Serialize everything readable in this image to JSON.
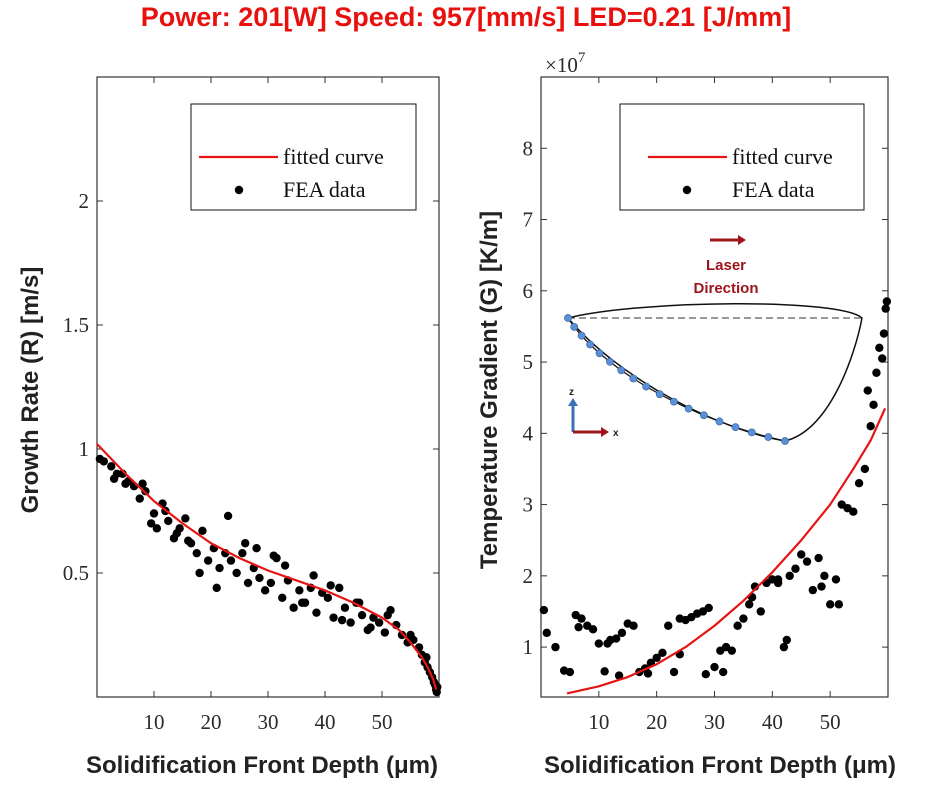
{
  "header": {
    "title": "Power: 201[W]   Speed: 957[mm/s]   LED=0.21 [J/mm]"
  },
  "colors": {
    "title": "#e8110e",
    "fit": "#e61414",
    "points": "#000000",
    "inset_dots": "#5b8fd6",
    "arrow": "#a0151c",
    "z_axis": "#3b6fb6"
  },
  "chart_data": [
    {
      "type": "scatter",
      "title": "",
      "xlabel": "Solidification Front Depth (μm)",
      "ylabel": "Growth Rate (R) [m/s]",
      "xlim": [
        0,
        60
      ],
      "ylim": [
        0,
        2.5
      ],
      "xticks": [
        10,
        20,
        30,
        40,
        50
      ],
      "xtick_labels": [
        "10",
        "20",
        "30",
        "40",
        "50"
      ],
      "yticks": [
        0.5,
        1,
        1.5,
        2
      ],
      "ytick_labels": [
        "0.5",
        "1",
        "1.5",
        "2"
      ],
      "legend": {
        "placement": "top-right",
        "entries": [
          "fitted curve",
          "FEA data"
        ]
      },
      "series": [
        {
          "name": "fitted curve",
          "kind": "line",
          "x": [
            0,
            5,
            10,
            15,
            20,
            25,
            30,
            35,
            40,
            45,
            50,
            53,
            55,
            57,
            58,
            59,
            59.5
          ],
          "y": [
            1.02,
            0.9,
            0.79,
            0.7,
            0.62,
            0.56,
            0.51,
            0.47,
            0.43,
            0.38,
            0.32,
            0.27,
            0.22,
            0.16,
            0.12,
            0.07,
            0.03
          ]
        },
        {
          "name": "FEA data",
          "kind": "scatter",
          "x": [
            0.5,
            1.2,
            2.5,
            3.5,
            4.5,
            5.5,
            6.5,
            7.5,
            8.5,
            9.5,
            10.5,
            11.5,
            12.5,
            13.5,
            14.5,
            15.5,
            16.5,
            17.5,
            18.5,
            19.5,
            20.5,
            21.5,
            22.5,
            23.5,
            24.5,
            25.5,
            26.5,
            27.5,
            28.5,
            29.5,
            30.5,
            31.5,
            32.5,
            33.5,
            34.5,
            35.5,
            36.5,
            37.5,
            38.5,
            39.5,
            40.5,
            41.5,
            42.5,
            43.5,
            44.5,
            45.5,
            46.5,
            47.5,
            48.5,
            49.5,
            50.5,
            51.5,
            52.5,
            53.5,
            54.5,
            55.5,
            56.5,
            57.0,
            57.5,
            58.0,
            58.4,
            58.8,
            59.1,
            59.3,
            59.5,
            59.6,
            59.7,
            3.0,
            5.0,
            8.0,
            10.0,
            12.0,
            14.0,
            16.0,
            18.0,
            21.0,
            23.0,
            26.0,
            28.0,
            31.0,
            33.0,
            36.0,
            38.0,
            41.0,
            43.0,
            46.0,
            48.0,
            51.0,
            55.0,
            57.8
          ],
          "y": [
            0.96,
            0.95,
            0.93,
            0.9,
            0.9,
            0.87,
            0.85,
            0.8,
            0.83,
            0.7,
            0.68,
            0.78,
            0.71,
            0.64,
            0.68,
            0.72,
            0.62,
            0.58,
            0.67,
            0.55,
            0.6,
            0.52,
            0.58,
            0.55,
            0.5,
            0.58,
            0.46,
            0.52,
            0.48,
            0.43,
            0.46,
            0.56,
            0.4,
            0.47,
            0.36,
            0.43,
            0.38,
            0.44,
            0.34,
            0.42,
            0.4,
            0.32,
            0.44,
            0.36,
            0.3,
            0.38,
            0.33,
            0.27,
            0.32,
            0.3,
            0.26,
            0.35,
            0.29,
            0.25,
            0.22,
            0.23,
            0.2,
            0.17,
            0.14,
            0.12,
            0.1,
            0.08,
            0.06,
            0.05,
            0.03,
            0.02,
            0.04,
            0.88,
            0.86,
            0.86,
            0.74,
            0.75,
            0.66,
            0.63,
            0.5,
            0.44,
            0.73,
            0.62,
            0.6,
            0.57,
            0.53,
            0.38,
            0.49,
            0.45,
            0.31,
            0.38,
            0.28,
            0.33,
            0.25,
            0.16
          ]
        }
      ]
    },
    {
      "type": "scatter",
      "title": "",
      "xlabel": "Solidification Front Depth (μm)",
      "ylabel": "Temperature Gradient (G) [K/m]",
      "exponent_label": "×10",
      "exponent_power": "7",
      "xlim": [
        0,
        60
      ],
      "ylim": [
        0.3,
        9.0
      ],
      "xticks": [
        10,
        20,
        30,
        40,
        50
      ],
      "xtick_labels": [
        "10",
        "20",
        "30",
        "40",
        "50"
      ],
      "yticks": [
        1,
        2,
        3,
        4,
        5,
        6,
        7,
        8
      ],
      "ytick_labels": [
        "1",
        "2",
        "3",
        "4",
        "5",
        "6",
        "7",
        "8"
      ],
      "legend": {
        "placement": "top-right",
        "entries": [
          "fitted curve",
          "FEA data"
        ]
      },
      "series": [
        {
          "name": "fitted curve",
          "kind": "line",
          "x": [
            4.5,
            10,
            15,
            20,
            25,
            30,
            35,
            40,
            45,
            50,
            54,
            57,
            59.5
          ],
          "y": [
            0.35,
            0.45,
            0.58,
            0.76,
            1.0,
            1.3,
            1.65,
            2.05,
            2.5,
            3.0,
            3.5,
            3.9,
            4.35
          ]
        },
        {
          "name": "FEA data",
          "kind": "scatter",
          "x": [
            0.5,
            1.0,
            2.5,
            4.0,
            5.0,
            6.0,
            7.0,
            8.0,
            9.0,
            10.0,
            11.0,
            12.0,
            13.0,
            14.0,
            15.0,
            16.0,
            17.0,
            18.0,
            19.0,
            20.0,
            21.0,
            22.0,
            23.0,
            24.0,
            25.0,
            26.0,
            27.0,
            28.0,
            29.0,
            30.0,
            31.0,
            32.0,
            33.0,
            34.0,
            35.0,
            36.0,
            37.0,
            38.0,
            39.0,
            40.0,
            41.0,
            42.0,
            42.5,
            43.0,
            44.0,
            45.0,
            46.0,
            47.0,
            48.0,
            49.0,
            50.0,
            51.0,
            52.0,
            53.0,
            54.0,
            55.0,
            56.0,
            57.0,
            57.5,
            58.0,
            58.5,
            59.0,
            59.3,
            59.6,
            59.8,
            6.5,
            11.5,
            13.5,
            18.5,
            24.0,
            28.5,
            31.5,
            36.5,
            41.0,
            48.5,
            51.5,
            56.5
          ],
          "y": [
            1.52,
            1.2,
            1.0,
            0.67,
            0.65,
            1.45,
            1.4,
            1.3,
            1.25,
            1.05,
            0.66,
            1.1,
            1.12,
            1.2,
            1.33,
            1.3,
            0.65,
            0.7,
            0.78,
            0.85,
            0.92,
            1.3,
            0.65,
            1.4,
            1.38,
            1.42,
            1.47,
            1.5,
            1.55,
            0.72,
            0.95,
            1.0,
            0.95,
            1.3,
            1.4,
            1.6,
            1.85,
            1.5,
            1.9,
            1.95,
            1.9,
            1.0,
            1.1,
            2.0,
            2.1,
            2.3,
            2.2,
            1.8,
            2.25,
            2.0,
            1.6,
            1.95,
            3.0,
            2.95,
            2.9,
            3.3,
            3.5,
            4.1,
            4.4,
            4.85,
            5.2,
            5.05,
            5.4,
            5.75,
            5.85,
            1.28,
            1.05,
            0.6,
            0.63,
            0.9,
            0.62,
            0.65,
            1.7,
            1.95,
            1.85,
            1.6,
            4.6
          ]
        }
      ]
    }
  ],
  "inset": {
    "laser_label_line1": "Laser",
    "laser_label_line2": "Direction",
    "z_label": "z",
    "x_label": "x"
  }
}
